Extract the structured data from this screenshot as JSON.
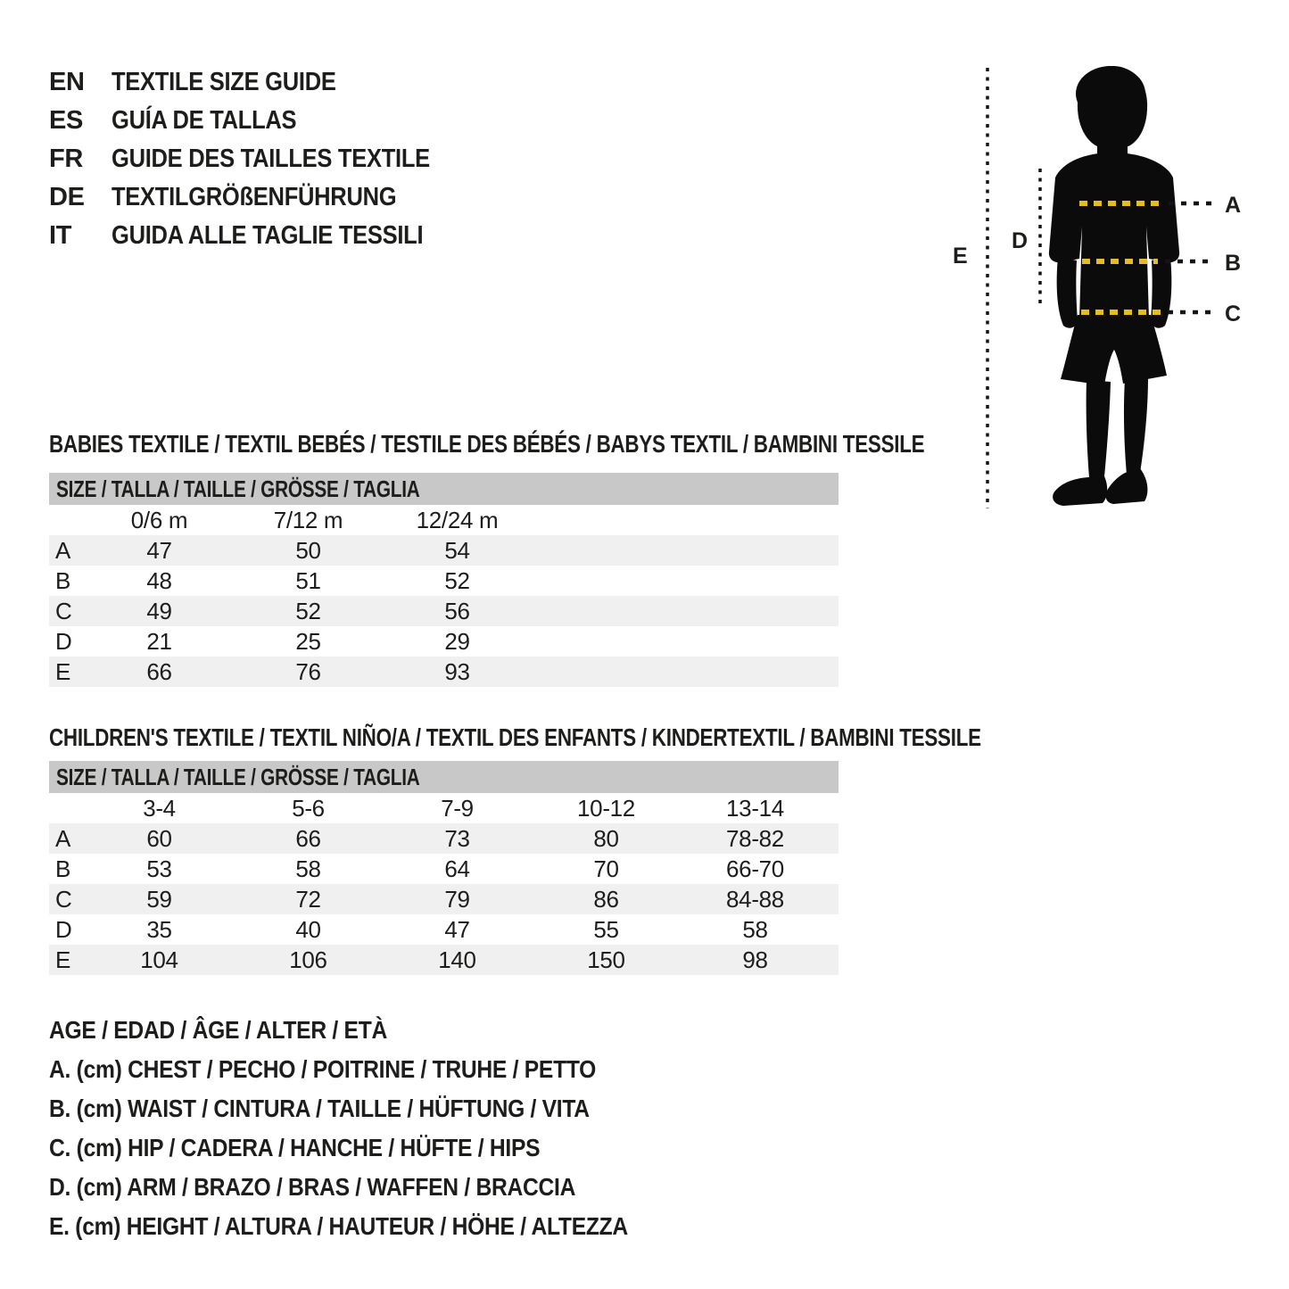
{
  "header": {
    "languages": [
      {
        "code": "EN",
        "title": "TEXTILE SIZE GUIDE"
      },
      {
        "code": "ES",
        "title": "GUÍA DE TALLAS"
      },
      {
        "code": "FR",
        "title": "GUIDE DES TAILLES TEXTILE"
      },
      {
        "code": "DE",
        "title": "TEXTILGRÖßENFÜHRUNG"
      },
      {
        "code": "IT",
        "title": "GUIDA ALLE TAGLIE TESSILI"
      }
    ]
  },
  "figure": {
    "measure_labels": {
      "a": "A",
      "b": "B",
      "c": "C",
      "d": "D",
      "e": "E"
    },
    "accent_color": "#e5bc25",
    "silhouette_color": "#0b0b0b"
  },
  "babies": {
    "title": "BABIES TEXTILE / TEXTIL BEBÉS / TESTILE DES BÉBÉS / BABYS TEXTIL / BAMBINI TESSILE",
    "size_header": "SIZE / TALLA / TAILLE / GRÖSSE / TAGLIA",
    "columns": [
      "0/6 m",
      "7/12 m",
      "12/24 m"
    ],
    "rows": [
      {
        "label": "A",
        "values": [
          "47",
          "50",
          "54"
        ]
      },
      {
        "label": "B",
        "values": [
          "48",
          "51",
          "52"
        ]
      },
      {
        "label": "C",
        "values": [
          "49",
          "52",
          "56"
        ]
      },
      {
        "label": "D",
        "values": [
          "21",
          "25",
          "29"
        ]
      },
      {
        "label": "E",
        "values": [
          "66",
          "76",
          "93"
        ]
      }
    ]
  },
  "children": {
    "title": "CHILDREN'S TEXTILE / TEXTIL NIÑO/A / TEXTIL DES ENFANTS / KINDERTEXTIL / BAMBINI TESSILE",
    "size_header": "SIZE / TALLA / TAILLE / GRÖSSE / TAGLIA",
    "columns": [
      "3-4",
      "5-6",
      "7-9",
      "10-12",
      "13-14"
    ],
    "rows": [
      {
        "label": "A",
        "values": [
          "60",
          "66",
          "73",
          "80",
          "78-82"
        ]
      },
      {
        "label": "B",
        "values": [
          "53",
          "58",
          "64",
          "70",
          "66-70"
        ]
      },
      {
        "label": "C",
        "values": [
          "59",
          "72",
          "79",
          "86",
          "84-88"
        ]
      },
      {
        "label": "D",
        "values": [
          "35",
          "40",
          "47",
          "55",
          "58"
        ]
      },
      {
        "label": "E",
        "values": [
          "104",
          "106",
          "140",
          "150",
          "98"
        ]
      }
    ]
  },
  "legend": {
    "age": "AGE / EDAD / ÂGE / ALTER / ETÀ",
    "items": [
      "A. (cm) CHEST / PECHO / POITRINE / TRUHE / PETTO",
      "B. (cm) WAIST / CINTURA / TAILLE / HÜFTUNG / VITA",
      "C. (cm) HIP / CADERA / HANCHE / HÜFTE / HIPS",
      "D. (cm) ARM / BRAZO / BRAS / WAFFEN / BRACCIA",
      "E. (cm) HEIGHT / ALTURA / HAUTEUR / HÖHE / ALTEZZA"
    ]
  },
  "colors": {
    "text": "#1d1d1b",
    "table_header_bar": "#c8c8c8",
    "table_alt_row": "#f0f0f0",
    "dash_yellow": "#e5bc25",
    "silhouette": "#0b0b0b"
  }
}
